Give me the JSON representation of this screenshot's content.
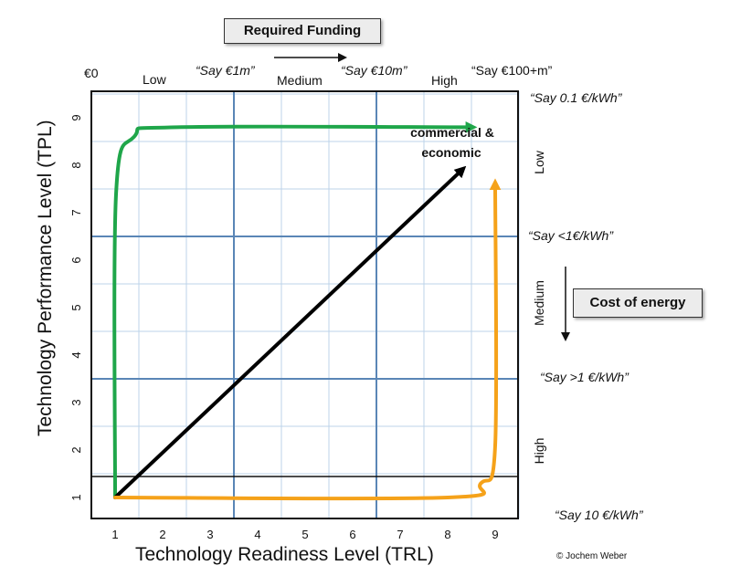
{
  "funding": {
    "title": "Required Funding",
    "zero": "€0",
    "low": "Low",
    "say1m": "“Say €1m”",
    "medium": "Medium",
    "say10m": "“Say €10m”",
    "high": "High",
    "say100m": "“Say €100+m”"
  },
  "energy": {
    "title": "Cost of energy",
    "say01": "“Say 0.1 €/kWh”",
    "low": "Low",
    "sayLt1": "“Say <1€/kWh”",
    "medium": "Medium",
    "sayGt1": "“Say >1 €/kWh”",
    "high": "High",
    "say10": "“Say 10 €/kWh”"
  },
  "chart_data": {
    "type": "line",
    "xlabel": "Technology Readiness Level (TRL)",
    "ylabel": "Technology Performance Level (TPL)",
    "x_ticks": [
      "1",
      "2",
      "3",
      "4",
      "5",
      "6",
      "7",
      "8",
      "9"
    ],
    "y_ticks": [
      "1",
      "2",
      "3",
      "4",
      "5",
      "6",
      "7",
      "8",
      "9"
    ],
    "annotation": [
      "commercial &",
      "economic"
    ],
    "grid": true,
    "series": [
      {
        "color": "#1fa64a",
        "points": [
          [
            1.0,
            1.0
          ],
          [
            1.02,
            7.4
          ],
          [
            1.4,
            8.6
          ],
          [
            2.3,
            8.8
          ],
          [
            8.5,
            8.8
          ]
        ]
      },
      {
        "color": "#000000",
        "points": [
          [
            1.0,
            1.0
          ],
          [
            8.3,
            7.9
          ]
        ]
      },
      {
        "color": "#f5a21a",
        "points": [
          [
            1.0,
            1.0
          ],
          [
            8.0,
            1.0
          ],
          [
            8.7,
            1.3
          ],
          [
            9.0,
            2.1
          ],
          [
            9.0,
            7.6
          ]
        ]
      }
    ]
  },
  "credit": "© Jochem Weber"
}
